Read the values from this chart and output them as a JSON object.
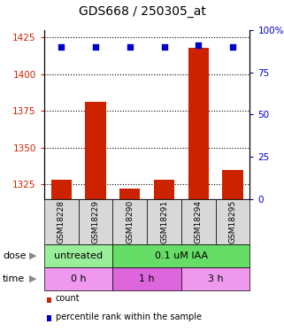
{
  "title": "GDS668 / 250305_at",
  "samples": [
    "GSM18228",
    "GSM18229",
    "GSM18290",
    "GSM18291",
    "GSM18294",
    "GSM18295"
  ],
  "bar_values": [
    1328,
    1381,
    1322,
    1328,
    1418,
    1335
  ],
  "percentile_values": [
    90,
    90,
    90,
    90,
    91,
    90
  ],
  "ylim_left": [
    1315,
    1430
  ],
  "ylim_right": [
    0,
    100
  ],
  "yticks_left": [
    1325,
    1350,
    1375,
    1400,
    1425
  ],
  "yticks_right": [
    0,
    25,
    50,
    75,
    100
  ],
  "bar_color": "#cc2200",
  "dot_color": "#0000cc",
  "dot_size": 25,
  "bar_width": 0.6,
  "dose_labels": [
    {
      "text": "untreated",
      "start": 0,
      "end": 2,
      "color": "#99ee99"
    },
    {
      "text": "0.1 uM IAA",
      "start": 2,
      "end": 6,
      "color": "#66dd66"
    }
  ],
  "time_labels": [
    {
      "text": "0 h",
      "start": 0,
      "end": 2,
      "color": "#ee99ee"
    },
    {
      "text": "1 h",
      "start": 2,
      "end": 4,
      "color": "#dd66dd"
    },
    {
      "text": "3 h",
      "start": 4,
      "end": 6,
      "color": "#ee99ee"
    }
  ],
  "dose_row_label": "dose",
  "time_row_label": "time",
  "legend_count_color": "#cc2200",
  "legend_pct_color": "#0000cc",
  "legend_count_label": "count",
  "legend_pct_label": "percentile rank within the sample",
  "grid_linestyle": "dotted",
  "grid_color": "black",
  "title_fontsize": 10,
  "tick_fontsize": 7.5,
  "sample_fontsize": 6.5,
  "label_fontsize": 8,
  "left_tick_color": "#cc2200",
  "right_tick_color": "#0000cc",
  "sample_bg_color": "#d8d8d8",
  "fig_bg": "#ffffff"
}
